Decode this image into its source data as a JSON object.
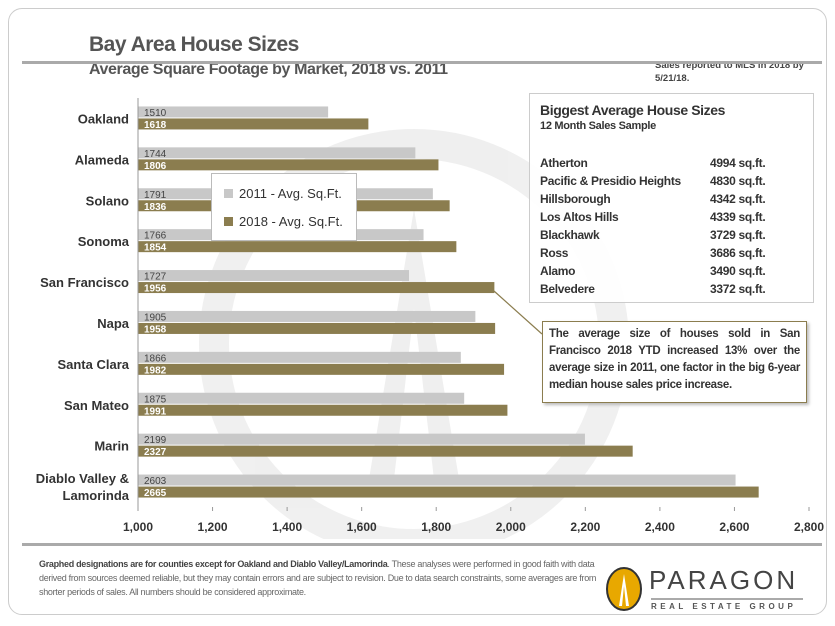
{
  "header": {
    "title": "Bay Area House Sizes",
    "subtitle": "Average Square Footage by Market, 2018 vs. 2011",
    "note": "Sales reported  to MLS in 2018 by 5/21/18."
  },
  "chart_data": {
    "type": "bar",
    "orientation": "horizontal",
    "title": "Bay Area House Sizes",
    "subtitle": "Average Square Footage by Market, 2018 vs. 2011",
    "categories": [
      "Oakland",
      "Alameda",
      "Solano",
      "Sonoma",
      "San Francisco",
      "Napa",
      "Santa Clara",
      "San Mateo",
      "Marin",
      "Diablo Valley & Lamorinda"
    ],
    "series": [
      {
        "name": "2011 - Avg. Sq.Ft.",
        "color": "#c8c8c8",
        "values": [
          1510,
          1744,
          1791,
          1766,
          1727,
          1905,
          1866,
          1875,
          2199,
          2603
        ]
      },
      {
        "name": "2018 - Avg. Sq.Ft.",
        "color": "#8b7d4f",
        "values": [
          1618,
          1806,
          1836,
          1854,
          1956,
          1958,
          1982,
          1991,
          2327,
          2665
        ]
      }
    ],
    "xlim": [
      1000,
      2800
    ],
    "xticks": [
      "1,000",
      "1,200",
      "1,400",
      "1,600",
      "1,800",
      "2,000",
      "2,200",
      "2,400",
      "2,600",
      "2,800"
    ],
    "xtick_values": [
      1000,
      1200,
      1400,
      1600,
      1800,
      2000,
      2200,
      2400,
      2600,
      2800
    ],
    "grid": false,
    "legend": "upper-left inset"
  },
  "table": {
    "title": "Biggest Average House Sizes",
    "subtitle": "12 Month Sales Sample",
    "rows": [
      {
        "name": "Atherton",
        "value": "4994 sq.ft."
      },
      {
        "name": "Pacific & Presidio Heights",
        "value": "4830 sq.ft."
      },
      {
        "name": "Hillsborough",
        "value": "4342 sq.ft."
      },
      {
        "name": "Los Altos Hills",
        "value": "4339 sq.ft."
      },
      {
        "name": "Blackhawk",
        "value": "3729 sq.ft."
      },
      {
        "name": "Ross",
        "value": "3686 sq.ft."
      },
      {
        "name": "Alamo",
        "value": "3490 sq.ft."
      },
      {
        "name": "Belvedere",
        "value": "3372 sq.ft."
      }
    ]
  },
  "callout": "The average size of houses sold in San Francisco 2018 YTD increased 13% over the average size in 2011, one factor in the big 6-year median house sales price increase.",
  "footer": {
    "bold": "Graphed designations are for counties except for Oakland and Diablo Valley/Lamorinda",
    "text": ". These analyses were performed in good faith with data derived from sources deemed reliable, but they may contain errors and are subject to revision.  Due to data search constraints,  some averages are from shorter periods of sales. All numbers  should be considered approximate."
  },
  "logo": {
    "name": "PARAGON",
    "sub": "REAL ESTATE GROUP",
    "accent": "#e8a800"
  }
}
